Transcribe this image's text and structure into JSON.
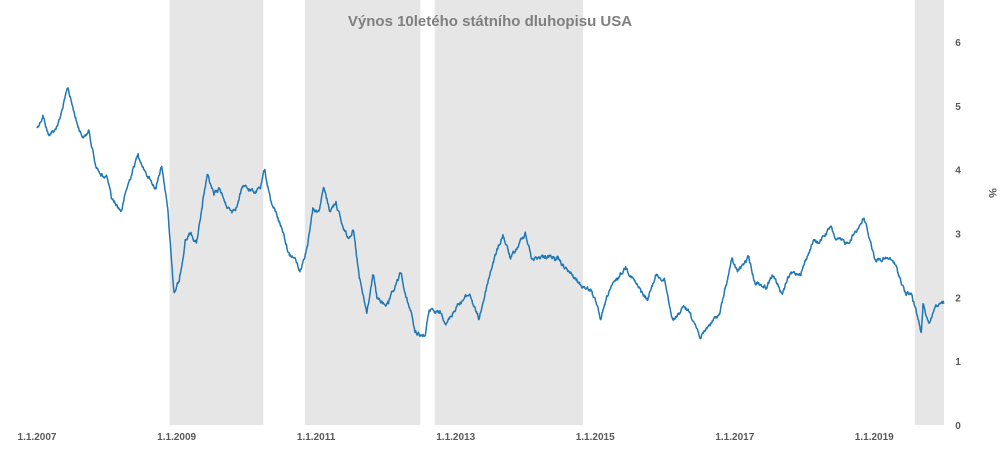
{
  "chart_data": {
    "type": "line",
    "title": "Výnos 10letého státního dluhopisu USA",
    "ylabel": "%",
    "xlim": [
      "2007-01-01",
      "2020-01-01"
    ],
    "ylim": [
      0,
      6.5
    ],
    "grid": false,
    "x_ticks": [
      {
        "date": "2007-01-01",
        "label": "1.1.2007"
      },
      {
        "date": "2009-01-01",
        "label": "1.1.2009"
      },
      {
        "date": "2011-01-01",
        "label": "1.1.2011"
      },
      {
        "date": "2013-01-01",
        "label": "1.1.2013"
      },
      {
        "date": "2015-01-01",
        "label": "1.1.2015"
      },
      {
        "date": "2017-01-01",
        "label": "1.1.2017"
      },
      {
        "date": "2019-01-01",
        "label": "1.1.2019"
      }
    ],
    "y_ticks": [
      0,
      1,
      2,
      3,
      4,
      5,
      6
    ],
    "shaded_periods": [
      {
        "start": "2008-11-25",
        "end": "2010-03-31"
      },
      {
        "start": "2010-11-03",
        "end": "2012-06-30"
      },
      {
        "start": "2012-09-13",
        "end": "2014-10-29"
      },
      {
        "start": "2019-08-01",
        "end": "2020-01-01"
      }
    ],
    "series": [
      {
        "color": "#1f77b4",
        "points": [
          [
            "2007-01-01",
            4.65
          ],
          [
            "2007-02-01",
            4.85
          ],
          [
            "2007-03-01",
            4.55
          ],
          [
            "2007-04-01",
            4.6
          ],
          [
            "2007-05-01",
            4.8
          ],
          [
            "2007-06-12",
            5.28
          ],
          [
            "2007-07-01",
            5.05
          ],
          [
            "2007-08-01",
            4.7
          ],
          [
            "2007-09-01",
            4.5
          ],
          [
            "2007-10-01",
            4.6
          ],
          [
            "2007-11-01",
            4.1
          ],
          [
            "2007-12-01",
            3.9
          ],
          [
            "2008-01-01",
            3.9
          ],
          [
            "2008-01-25",
            3.55
          ],
          [
            "2008-03-17",
            3.35
          ],
          [
            "2008-04-15",
            3.7
          ],
          [
            "2008-06-13",
            4.25
          ],
          [
            "2008-07-15",
            4.0
          ],
          [
            "2008-08-15",
            3.85
          ],
          [
            "2008-09-15",
            3.7
          ],
          [
            "2008-10-15",
            4.05
          ],
          [
            "2008-11-15",
            3.4
          ],
          [
            "2008-12-18",
            2.08
          ],
          [
            "2009-01-15",
            2.25
          ],
          [
            "2009-02-15",
            2.9
          ],
          [
            "2009-03-15",
            3.0
          ],
          [
            "2009-04-15",
            2.85
          ],
          [
            "2009-05-15",
            3.4
          ],
          [
            "2009-06-10",
            3.92
          ],
          [
            "2009-07-15",
            3.6
          ],
          [
            "2009-08-15",
            3.7
          ],
          [
            "2009-09-15",
            3.45
          ],
          [
            "2009-10-15",
            3.35
          ],
          [
            "2009-11-15",
            3.45
          ],
          [
            "2009-12-15",
            3.75
          ],
          [
            "2010-01-15",
            3.7
          ],
          [
            "2010-02-15",
            3.65
          ],
          [
            "2010-03-15",
            3.7
          ],
          [
            "2010-04-05",
            3.98
          ],
          [
            "2010-05-15",
            3.45
          ],
          [
            "2010-06-15",
            3.25
          ],
          [
            "2010-07-15",
            3.0
          ],
          [
            "2010-08-15",
            2.65
          ],
          [
            "2010-09-15",
            2.6
          ],
          [
            "2010-10-08",
            2.4
          ],
          [
            "2010-11-15",
            2.8
          ],
          [
            "2010-12-15",
            3.4
          ],
          [
            "2011-01-15",
            3.35
          ],
          [
            "2011-02-09",
            3.72
          ],
          [
            "2011-03-15",
            3.35
          ],
          [
            "2011-04-15",
            3.5
          ],
          [
            "2011-05-15",
            3.15
          ],
          [
            "2011-06-15",
            2.95
          ],
          [
            "2011-07-15",
            3.05
          ],
          [
            "2011-08-15",
            2.3
          ],
          [
            "2011-09-23",
            1.75
          ],
          [
            "2011-10-27",
            2.35
          ],
          [
            "2011-11-15",
            2.0
          ],
          [
            "2011-12-15",
            1.9
          ],
          [
            "2012-01-15",
            1.9
          ],
          [
            "2012-03-20",
            2.38
          ],
          [
            "2012-04-15",
            2.0
          ],
          [
            "2012-05-15",
            1.75
          ],
          [
            "2012-06-01",
            1.45
          ],
          [
            "2012-07-25",
            1.4
          ],
          [
            "2012-08-15",
            1.8
          ],
          [
            "2012-09-15",
            1.75
          ],
          [
            "2012-10-15",
            1.75
          ],
          [
            "2012-11-15",
            1.6
          ],
          [
            "2012-12-15",
            1.75
          ],
          [
            "2013-01-15",
            1.9
          ],
          [
            "2013-03-15",
            2.05
          ],
          [
            "2013-05-02",
            1.65
          ],
          [
            "2013-06-15",
            2.2
          ],
          [
            "2013-07-15",
            2.55
          ],
          [
            "2013-09-05",
            2.98
          ],
          [
            "2013-10-15",
            2.6
          ],
          [
            "2013-11-15",
            2.75
          ],
          [
            "2013-12-31",
            3.02
          ],
          [
            "2014-02-03",
            2.6
          ],
          [
            "2014-04-15",
            2.65
          ],
          [
            "2014-06-15",
            2.6
          ],
          [
            "2014-08-15",
            2.4
          ],
          [
            "2014-10-15",
            2.2
          ],
          [
            "2014-12-15",
            2.1
          ],
          [
            "2015-01-30",
            1.65
          ],
          [
            "2015-03-15",
            2.1
          ],
          [
            "2015-06-10",
            2.48
          ],
          [
            "2015-08-15",
            2.15
          ],
          [
            "2015-10-01",
            1.95
          ],
          [
            "2015-11-15",
            2.35
          ],
          [
            "2015-12-31",
            2.27
          ],
          [
            "2016-02-11",
            1.65
          ],
          [
            "2016-04-15",
            1.85
          ],
          [
            "2016-05-15",
            1.75
          ],
          [
            "2016-07-08",
            1.36
          ],
          [
            "2016-08-15",
            1.55
          ],
          [
            "2016-10-15",
            1.75
          ],
          [
            "2016-12-15",
            2.58
          ],
          [
            "2017-01-15",
            2.4
          ],
          [
            "2017-03-13",
            2.62
          ],
          [
            "2017-04-15",
            2.25
          ],
          [
            "2017-06-15",
            2.15
          ],
          [
            "2017-07-15",
            2.35
          ],
          [
            "2017-09-07",
            2.05
          ],
          [
            "2017-10-15",
            2.35
          ],
          [
            "2017-12-15",
            2.4
          ],
          [
            "2018-02-15",
            2.88
          ],
          [
            "2018-03-15",
            2.85
          ],
          [
            "2018-05-17",
            3.1
          ],
          [
            "2018-06-15",
            2.9
          ],
          [
            "2018-08-15",
            2.85
          ],
          [
            "2018-11-08",
            3.24
          ],
          [
            "2018-12-15",
            2.85
          ],
          [
            "2019-01-03",
            2.6
          ],
          [
            "2019-03-15",
            2.6
          ],
          [
            "2019-04-15",
            2.55
          ],
          [
            "2019-06-15",
            2.05
          ],
          [
            "2019-07-15",
            2.05
          ],
          [
            "2019-09-04",
            1.45
          ],
          [
            "2019-09-13",
            1.9
          ],
          [
            "2019-10-15",
            1.6
          ],
          [
            "2019-11-15",
            1.85
          ],
          [
            "2019-12-31",
            1.9
          ]
        ]
      }
    ]
  }
}
